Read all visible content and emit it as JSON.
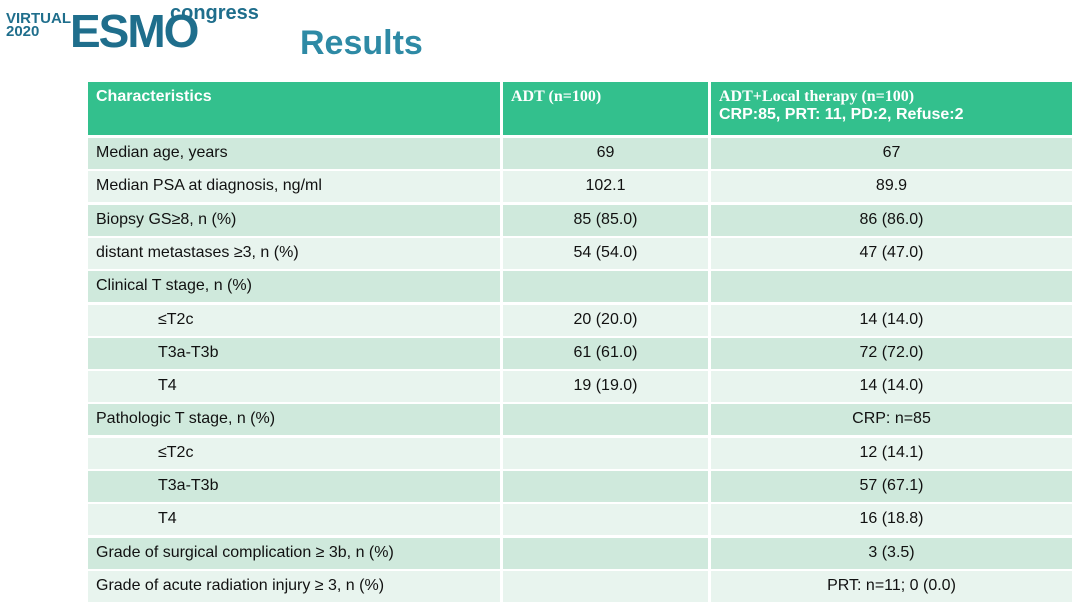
{
  "header": {
    "logo_virtual": "VIRTUAL",
    "logo_year": "2020",
    "logo_main": "ESMO",
    "logo_sup": "congress",
    "title": "Results"
  },
  "table": {
    "columns": [
      [
        "Characteristics"
      ],
      [
        "ADT  (n=100)"
      ],
      [
        "ADT+Local therapy (n=100)",
        "CRP:85, PRT: 11,  PD:2, Refuse:2"
      ]
    ],
    "rows": [
      {
        "cells": [
          "Median age, years",
          "69",
          "67"
        ]
      },
      {
        "cells": [
          "Median PSA at diagnosis, ng/ml",
          "102.1",
          "89.9"
        ]
      },
      {
        "cells": [
          "Biopsy GS≥8, n (%)",
          "85 (85.0)",
          "86 (86.0)"
        ]
      },
      {
        "cells": [
          "distant metastases ≥3, n (%)",
          "54 (54.0)",
          "47 (47.0)"
        ]
      },
      {
        "cells": [
          "Clinical T stage, n (%)",
          null,
          null
        ]
      },
      {
        "cells": [
          "≤T2c",
          "20 (20.0)",
          "14 (14.0)"
        ],
        "indented": true
      },
      {
        "cells": [
          "T3a-T3b",
          "61 (61.0)",
          "72 (72.0)"
        ],
        "indented": true
      },
      {
        "cells": [
          "T4",
          "19 (19.0)",
          "14 (14.0)"
        ],
        "indented": true
      },
      {
        "cells": [
          "Pathologic T stage, n (%)",
          null,
          "CRP: n=85"
        ]
      },
      {
        "cells": [
          "≤T2c",
          null,
          "12 (14.1)"
        ],
        "indented": true
      },
      {
        "cells": [
          "T3a-T3b",
          null,
          "57 (67.1)"
        ],
        "indented": true
      },
      {
        "cells": [
          "T4",
          null,
          "16 (18.8)"
        ],
        "indented": true
      },
      {
        "cells": [
          "Grade of surgical complication ≥ 3b, n (%)",
          null,
          "3 (3.5)"
        ]
      },
      {
        "cells": [
          "Grade of acute radiation injury ≥ 3, n (%)",
          null,
          "PRT: n=11; 0 (0.0)"
        ]
      }
    ]
  }
}
